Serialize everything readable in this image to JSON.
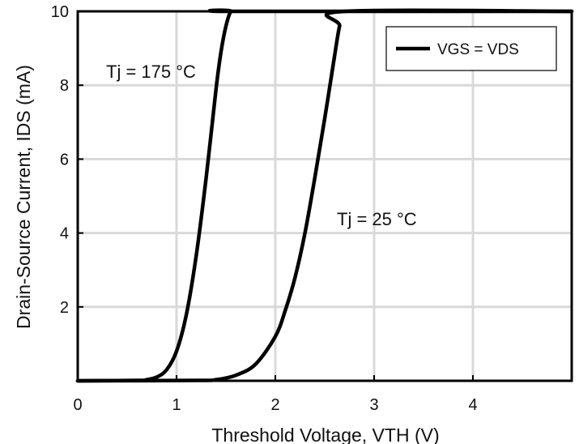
{
  "chart_data": {
    "type": "line",
    "title": "",
    "xlabel": "Threshold Voltage, VTH (V)",
    "ylabel": "Drain-Source Current, IDS (mA)",
    "xlim": [
      0,
      5
    ],
    "ylim": [
      0,
      10
    ],
    "xticks": [
      "0",
      "1",
      "2",
      "3",
      "4"
    ],
    "yticks": [
      "2",
      "4",
      "6",
      "8",
      "10"
    ],
    "grid": true,
    "legend": {
      "position": "top-right",
      "entries": [
        "VGS = VDS"
      ]
    },
    "annotations": [
      "Tj = 175 °C",
      "Tj = 25 °C"
    ],
    "colors": {
      "line": "#000000",
      "grid": "#d9d9d9",
      "axes": "#000000",
      "background": "#ffffff"
    },
    "series": [
      {
        "annotation": "Tj = 175 °C",
        "x": [
          0.0,
          0.6,
          0.7,
          0.8,
          0.9,
          1.0,
          1.1,
          1.2,
          1.3,
          1.4,
          1.45,
          1.5,
          1.55,
          1.6,
          5.0
        ],
        "y": [
          0.0,
          0.01,
          0.03,
          0.1,
          0.3,
          0.8,
          1.8,
          3.4,
          5.5,
          7.9,
          8.9,
          9.6,
          10.0,
          10.0,
          10.0
        ]
      },
      {
        "annotation": "Tj = 25 °C",
        "x": [
          0.0,
          1.2,
          1.4,
          1.6,
          1.8,
          2.0,
          2.1,
          2.2,
          2.3,
          2.4,
          2.5,
          2.6,
          2.65,
          2.7,
          5.0
        ],
        "y": [
          0.0,
          0.01,
          0.03,
          0.15,
          0.45,
          1.2,
          1.9,
          2.8,
          4.0,
          5.5,
          7.1,
          8.8,
          9.6,
          10.0,
          10.0
        ]
      }
    ]
  }
}
